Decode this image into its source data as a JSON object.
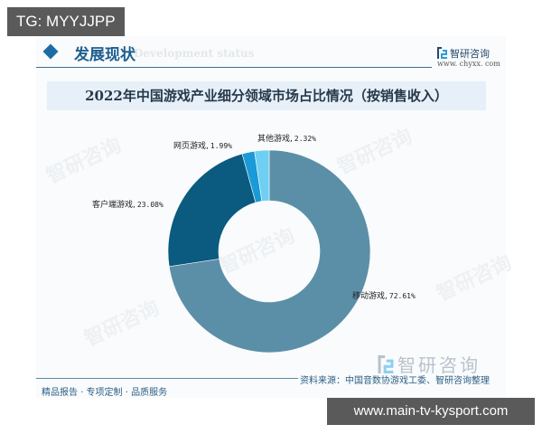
{
  "overlay": {
    "tg_badge": "TG: MYYJJPP",
    "url_badge": "www.main-tv-kysport.com"
  },
  "header": {
    "section_title": "发展现状",
    "section_subtitle": "Development status",
    "brand_name": "智研咨询",
    "brand_url": "www. chyxx. com"
  },
  "footer": {
    "slogan": "精品报告 · 专项定制 · 品质服务",
    "source": "资料来源：中国音数协游戏工委、智研咨询整理",
    "brand_name": "智研咨询"
  },
  "watermark": "智研咨询",
  "chart_data": {
    "type": "pie",
    "subtype": "donut",
    "title": "2022年中国游戏产业细分领域市场占比情况（按销售收入）",
    "categories": [
      "移动游戏",
      "客户端游戏",
      "网页游戏",
      "其他游戏"
    ],
    "values": [
      72.61,
      23.08,
      1.99,
      2.32
    ],
    "unit": "%",
    "colors": [
      "#5b8fa8",
      "#0b5a80",
      "#1a9ad6",
      "#6fcff3"
    ],
    "labels": [
      {
        "name": "移动游戏",
        "value": "72.61%"
      },
      {
        "name": "客户端游戏",
        "value": "23.08%"
      },
      {
        "name": "网页游戏",
        "value": "1.99%"
      },
      {
        "name": "其他游戏",
        "value": "2.32%"
      }
    ],
    "start_angle": "12 o'clock",
    "direction": "clockwise",
    "legend": "none (inline labels)"
  }
}
